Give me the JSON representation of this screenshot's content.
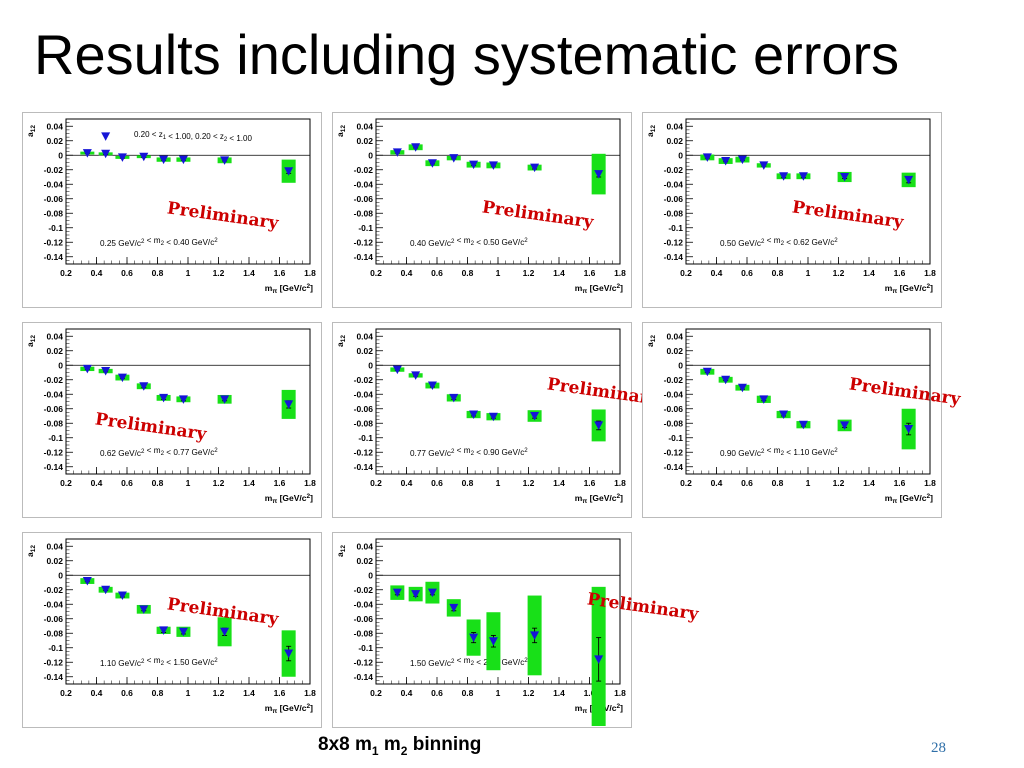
{
  "slide": {
    "title": "Results including systematic errors",
    "footer_prefix": "8x8 m",
    "footer_sub1": "1",
    "footer_mid": " m",
    "footer_sub2": "2",
    "footer_suffix": " binning",
    "page_number": "28"
  },
  "colors": {
    "marker": "#1515d6",
    "error_box": "#18e018",
    "preliminary": "#cc0000"
  },
  "chart_data": [
    {
      "type": "scatter",
      "ylabel": "a12",
      "xlabel": "mπ [GeV/c²]",
      "xlim": [
        0.2,
        1.8
      ],
      "ylim": [
        -0.15,
        0.05
      ],
      "xticks": [
        "0.2",
        "0.4",
        "0.6",
        "0.8",
        "1",
        "1.2",
        "1.4",
        "1.6",
        "1.8"
      ],
      "yticks": [
        "0.04",
        "0.02",
        "0",
        "-0.02",
        "-0.04",
        "-0.06",
        "-0.08",
        "-0.1",
        "-0.12",
        "-0.14"
      ],
      "header": "0.20 < z1 < 1.00, 0.20 < z2 < 1.00",
      "mass_range": "0.25 GeV/c² < m2 < 0.40 GeV/c²",
      "preliminary": "Preliminary",
      "x": [
        0.34,
        0.46,
        0.57,
        0.71,
        0.84,
        0.97,
        1.24,
        1.66
      ],
      "y": [
        0.003,
        0.002,
        -0.003,
        -0.002,
        -0.006,
        -0.006,
        -0.007,
        -0.022
      ],
      "stat_err": [
        0.001,
        0.001,
        0.001,
        0.001,
        0.001,
        0.001,
        0.001,
        0.003
      ],
      "syst_err": [
        0.002,
        0.002,
        0.002,
        0.002,
        0.003,
        0.003,
        0.004,
        0.016
      ],
      "extra_points": [
        {
          "x": 0.46,
          "y": 0.026
        }
      ]
    },
    {
      "type": "scatter",
      "ylabel": "a12",
      "xlabel": "mπ [GeV/c²]",
      "xlim": [
        0.2,
        1.8
      ],
      "ylim": [
        -0.15,
        0.05
      ],
      "xticks": [
        "0.2",
        "0.4",
        "0.6",
        "0.8",
        "1",
        "1.2",
        "1.4",
        "1.6",
        "1.8"
      ],
      "yticks": [
        "0.04",
        "0.02",
        "0",
        "-0.02",
        "-0.04",
        "-0.06",
        "-0.08",
        "-0.1",
        "-0.12",
        "-0.14"
      ],
      "mass_range": "0.40 GeV/c² < m2 < 0.50 GeV/c²",
      "preliminary": "Preliminary",
      "x": [
        0.34,
        0.46,
        0.57,
        0.71,
        0.84,
        0.97,
        1.24,
        1.66
      ],
      "y": [
        0.004,
        0.011,
        -0.011,
        -0.004,
        -0.013,
        -0.014,
        -0.017,
        -0.026
      ],
      "stat_err": [
        0.001,
        0.001,
        0.001,
        0.001,
        0.001,
        0.001,
        0.002,
        0.004
      ],
      "syst_err": [
        0.003,
        0.004,
        0.004,
        0.003,
        0.004,
        0.004,
        0.004,
        0.028
      ]
    },
    {
      "type": "scatter",
      "ylabel": "a12",
      "xlabel": "mπ [GeV/c²]",
      "xlim": [
        0.2,
        1.8
      ],
      "ylim": [
        -0.15,
        0.05
      ],
      "xticks": [
        "0.2",
        "0.4",
        "0.6",
        "0.8",
        "1",
        "1.2",
        "1.4",
        "1.6",
        "1.8"
      ],
      "yticks": [
        "0.04",
        "0.02",
        "0",
        "-0.02",
        "-0.04",
        "-0.06",
        "-0.08",
        "-0.1",
        "-0.12",
        "-0.14"
      ],
      "mass_range": "0.50 GeV/c² < m2 < 0.62 GeV/c²",
      "preliminary": "Preliminary",
      "x": [
        0.34,
        0.46,
        0.57,
        0.71,
        0.84,
        0.97,
        1.24,
        1.66
      ],
      "y": [
        -0.003,
        -0.008,
        -0.006,
        -0.014,
        -0.029,
        -0.029,
        -0.03,
        -0.034
      ],
      "stat_err": [
        0.001,
        0.001,
        0.001,
        0.001,
        0.002,
        0.002,
        0.002,
        0.004
      ],
      "syst_err": [
        0.004,
        0.004,
        0.004,
        0.003,
        0.004,
        0.004,
        0.007,
        0.01
      ]
    },
    {
      "type": "scatter",
      "ylabel": "a12",
      "xlabel": "mπ [GeV/c²]",
      "xlim": [
        0.2,
        1.8
      ],
      "ylim": [
        -0.15,
        0.05
      ],
      "xticks": [
        "0.2",
        "0.4",
        "0.6",
        "0.8",
        "1",
        "1.2",
        "1.4",
        "1.6",
        "1.8"
      ],
      "yticks": [
        "0.04",
        "0.02",
        "0",
        "-0.02",
        "-0.04",
        "-0.06",
        "-0.08",
        "-0.1",
        "-0.12",
        "-0.14"
      ],
      "mass_range": "0.62 GeV/c² < m2 < 0.77 GeV/c²",
      "preliminary": "Preliminary",
      "x": [
        0.34,
        0.46,
        0.57,
        0.71,
        0.84,
        0.97,
        1.24,
        1.66
      ],
      "y": [
        -0.005,
        -0.008,
        -0.017,
        -0.029,
        -0.045,
        -0.047,
        -0.047,
        -0.054
      ],
      "stat_err": [
        0.001,
        0.001,
        0.001,
        0.002,
        0.002,
        0.002,
        0.002,
        0.005
      ],
      "syst_err": [
        0.003,
        0.003,
        0.004,
        0.004,
        0.004,
        0.004,
        0.006,
        0.02
      ]
    },
    {
      "type": "scatter",
      "ylabel": "a12",
      "xlabel": "mπ [GeV/c²]",
      "xlim": [
        0.2,
        1.8
      ],
      "ylim": [
        -0.15,
        0.05
      ],
      "xticks": [
        "0.2",
        "0.4",
        "0.6",
        "0.8",
        "1",
        "1.2",
        "1.4",
        "1.6",
        "1.8"
      ],
      "yticks": [
        "0.04",
        "0.02",
        "0",
        "-0.02",
        "-0.04",
        "-0.06",
        "-0.08",
        "-0.1",
        "-0.12",
        "-0.14"
      ],
      "mass_range": "0.77 GeV/c² < m2 < 0.90 GeV/c²",
      "preliminary": "Preliminary",
      "x": [
        0.34,
        0.46,
        0.57,
        0.71,
        0.84,
        0.97,
        1.24,
        1.66
      ],
      "y": [
        -0.006,
        -0.014,
        -0.028,
        -0.045,
        -0.068,
        -0.071,
        -0.07,
        -0.083
      ],
      "stat_err": [
        0.001,
        0.001,
        0.002,
        0.002,
        0.002,
        0.002,
        0.003,
        0.006
      ],
      "syst_err": [
        0.003,
        0.003,
        0.004,
        0.005,
        0.005,
        0.005,
        0.008,
        0.022
      ]
    },
    {
      "type": "scatter",
      "ylabel": "a12",
      "xlabel": "mπ [GeV/c²]",
      "xlim": [
        0.2,
        1.8
      ],
      "ylim": [
        -0.15,
        0.05
      ],
      "xticks": [
        "0.2",
        "0.4",
        "0.6",
        "0.8",
        "1",
        "1.2",
        "1.4",
        "1.6",
        "1.8"
      ],
      "yticks": [
        "0.04",
        "0.02",
        "0",
        "-0.02",
        "-0.04",
        "-0.06",
        "-0.08",
        "-0.1",
        "-0.12",
        "-0.14"
      ],
      "mass_range": "0.90 GeV/c² < m2 < 1.10 GeV/c²",
      "preliminary": "Preliminary",
      "x": [
        0.34,
        0.46,
        0.57,
        0.71,
        0.84,
        0.97,
        1.24,
        1.66
      ],
      "y": [
        -0.009,
        -0.02,
        -0.031,
        -0.047,
        -0.068,
        -0.082,
        -0.083,
        -0.088
      ],
      "stat_err": [
        0.001,
        0.001,
        0.002,
        0.002,
        0.002,
        0.002,
        0.003,
        0.008
      ],
      "syst_err": [
        0.004,
        0.004,
        0.004,
        0.005,
        0.005,
        0.005,
        0.008,
        0.028
      ]
    },
    {
      "type": "scatter",
      "ylabel": "a12",
      "xlabel": "mπ [GeV/c²]",
      "xlim": [
        0.2,
        1.8
      ],
      "ylim": [
        -0.15,
        0.05
      ],
      "xticks": [
        "0.2",
        "0.4",
        "0.6",
        "0.8",
        "1",
        "1.2",
        "1.4",
        "1.6",
        "1.8"
      ],
      "yticks": [
        "0.04",
        "0.02",
        "0",
        "-0.02",
        "-0.04",
        "-0.06",
        "-0.08",
        "-0.1",
        "-0.12",
        "-0.14"
      ],
      "mass_range": "1.10 GeV/c² < m2 < 1.50 GeV/c²",
      "preliminary": "Preliminary",
      "x": [
        0.34,
        0.46,
        0.57,
        0.71,
        0.84,
        0.97,
        1.24,
        1.66
      ],
      "y": [
        -0.008,
        -0.02,
        -0.028,
        -0.047,
        -0.076,
        -0.078,
        -0.078,
        -0.108
      ],
      "stat_err": [
        0.001,
        0.001,
        0.002,
        0.002,
        0.003,
        0.003,
        0.005,
        0.01
      ],
      "syst_err": [
        0.004,
        0.004,
        0.004,
        0.006,
        0.005,
        0.007,
        0.02,
        0.032
      ]
    },
    {
      "type": "scatter",
      "ylabel": "a12",
      "xlabel": "mπ [GeV/c²]",
      "xlim": [
        0.2,
        1.8
      ],
      "ylim": [
        -0.15,
        0.05
      ],
      "xticks": [
        "0.2",
        "0.4",
        "0.6",
        "0.8",
        "1",
        "1.2",
        "1.4",
        "1.6",
        "1.8"
      ],
      "yticks": [
        "0.04",
        "0.02",
        "0",
        "-0.02",
        "-0.04",
        "-0.06",
        "-0.08",
        "-0.1",
        "-0.12",
        "-0.14"
      ],
      "mass_range": "1.50 GeV/c² < m2 < 2.00 GeV/c²",
      "preliminary": "Preliminary",
      "x": [
        0.34,
        0.46,
        0.57,
        0.71,
        0.84,
        0.97,
        1.24,
        1.66
      ],
      "y": [
        -0.024,
        -0.026,
        -0.024,
        -0.045,
        -0.086,
        -0.091,
        -0.083,
        -0.116
      ],
      "stat_err": [
        0.003,
        0.003,
        0.003,
        0.004,
        0.007,
        0.008,
        0.01,
        0.03
      ],
      "syst_err": [
        0.01,
        0.01,
        0.015,
        0.012,
        0.025,
        0.04,
        0.055,
        0.1
      ]
    }
  ]
}
